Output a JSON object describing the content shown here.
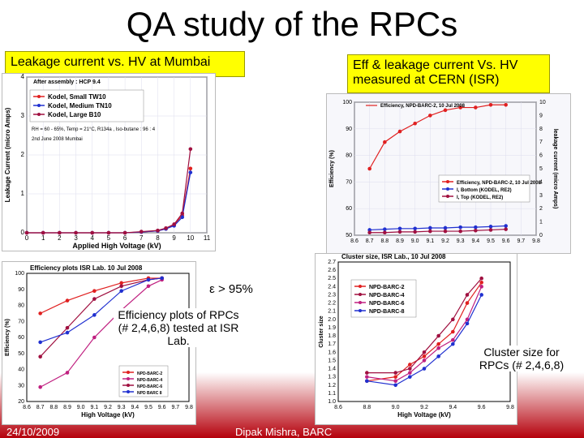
{
  "slide": {
    "title": "QA study of the RPCs",
    "box_left": "Leakage current vs. HV at Mumbai",
    "box_right": "Eff & leakage current Vs. HV measured at CERN (ISR)",
    "eff_note": "ε > 95%",
    "eff_caption": "Efficiency plots of RPCs (# 2,4,6,8) tested at ISR Lab.",
    "cluster_caption": "Cluster size for RPCs (# 2,4,6,8)",
    "footer_date": "24/10/2009",
    "footer_author": "Dipak Mishra, BARC"
  },
  "colors": {
    "red": "#e02020",
    "blue": "#2030d0",
    "darkred": "#a01040",
    "magenta": "#c02080",
    "navy": "#1020a0"
  },
  "chart_data": [
    {
      "type": "line",
      "id": "leakage_mumbai",
      "xlabel": "Applied High Voltage (kV)",
      "ylabel": "Leakage Current (micro Amps)",
      "xlim": [
        0,
        11
      ],
      "ylim": [
        0,
        4
      ],
      "xticks": [
        "0",
        "1",
        "2",
        "3",
        "4",
        "5",
        "6",
        "7",
        "8",
        "9",
        "10",
        "11"
      ],
      "yticks": [
        "0",
        "1",
        "2",
        "3",
        "4"
      ],
      "legend_header": "After assembly : HCP 9.4",
      "note1": "RH = 60 - 65%, Temp = 21°C, R134a , Iso-butane : 96 : 4",
      "note2": "2nd June 2008 Mumbai",
      "series": [
        {
          "name": "Kodel, Small TW10",
          "color": "red",
          "x": [
            0,
            1,
            2,
            3,
            4,
            5,
            6,
            7,
            8,
            8.5,
            9,
            9.5,
            10
          ],
          "y": [
            0,
            0,
            0,
            0,
            0,
            0,
            0,
            0.02,
            0.05,
            0.1,
            0.2,
            0.45,
            1.65
          ]
        },
        {
          "name": "Kodel, Medium TN10",
          "color": "blue",
          "x": [
            0,
            1,
            2,
            3,
            4,
            5,
            6,
            7,
            8,
            8.5,
            9,
            9.5,
            10
          ],
          "y": [
            0,
            0,
            0,
            0,
            0,
            0,
            0,
            0.02,
            0.05,
            0.1,
            0.18,
            0.4,
            1.55
          ]
        },
        {
          "name": "Kodel, Large B10",
          "color": "darkred",
          "x": [
            0,
            1,
            2,
            3,
            4,
            5,
            6,
            7,
            8,
            8.5,
            9,
            9.5,
            10
          ],
          "y": [
            0,
            0,
            0,
            0,
            0,
            0,
            0,
            0.03,
            0.06,
            0.12,
            0.22,
            0.5,
            2.15
          ]
        }
      ]
    },
    {
      "type": "line",
      "id": "eff_cern",
      "ylabel_left": "Efficiency (%)",
      "ylabel_right": "leakage current (micro Amps)",
      "xlim": [
        8.6,
        9.8
      ],
      "ylim": [
        50,
        100
      ],
      "y2lim": [
        0,
        10
      ],
      "xticks": [
        "8.6",
        "8.7",
        "8.8",
        "8.9",
        "9.0",
        "9.1",
        "9.2",
        "9.3",
        "9.4",
        "9.5",
        "9.6",
        "9.7",
        "9.8"
      ],
      "yticks": [
        "50",
        "60",
        "70",
        "80",
        "90",
        "100"
      ],
      "y2ticks": [
        "0",
        "1",
        "2",
        "3",
        "4",
        "5",
        "6",
        "7",
        "8",
        "9",
        "10"
      ],
      "series": [
        {
          "name": "Efficiency, NPD-BARC-2, 10 Jul 2008",
          "color": "red",
          "axis": "left",
          "x": [
            8.7,
            8.8,
            8.9,
            9.0,
            9.1,
            9.2,
            9.3,
            9.4,
            9.5,
            9.6
          ],
          "y": [
            75,
            85,
            89,
            92,
            95,
            97,
            98,
            98,
            99,
            99
          ]
        },
        {
          "name": "I, Bottom (KODEL, RE2)",
          "color": "blue",
          "axis": "right",
          "x": [
            8.7,
            8.8,
            8.9,
            9.0,
            9.1,
            9.2,
            9.3,
            9.4,
            9.5,
            9.6
          ],
          "y": [
            0.4,
            0.45,
            0.5,
            0.5,
            0.55,
            0.55,
            0.6,
            0.6,
            0.65,
            0.7
          ]
        },
        {
          "name": "I, Top (KODEL, RE2)",
          "color": "darkred",
          "axis": "right",
          "x": [
            8.7,
            8.8,
            8.9,
            9.0,
            9.1,
            9.2,
            9.3,
            9.4,
            9.5,
            9.6
          ],
          "y": [
            0.2,
            0.2,
            0.25,
            0.25,
            0.3,
            0.3,
            0.3,
            0.35,
            0.4,
            0.45
          ]
        }
      ]
    },
    {
      "type": "line",
      "id": "eff_isr",
      "title": "Efficiency plots ISR Lab. 10 Jul 2008",
      "xlabel": "High Voltage (kV)",
      "ylabel": "Efficiency (%)",
      "xlim": [
        8.6,
        9.8
      ],
      "ylim": [
        20,
        100
      ],
      "xticks": [
        "8.6",
        "8.7",
        "8.8",
        "8.9",
        "9.0",
        "9.1",
        "9.2",
        "9.3",
        "9.4",
        "9.5",
        "9.6",
        "9.7",
        "9.8"
      ],
      "yticks": [
        "20",
        "30",
        "40",
        "50",
        "60",
        "70",
        "80",
        "90",
        "100"
      ],
      "series": [
        {
          "name": "NPD-BARC-2",
          "color": "red",
          "x": [
            8.7,
            8.9,
            9.1,
            9.3,
            9.5,
            9.6
          ],
          "y": [
            75,
            83,
            89,
            94,
            97,
            97
          ]
        },
        {
          "name": "NPD-BARC-4",
          "color": "magenta",
          "x": [
            8.7,
            8.9,
            9.1,
            9.3,
            9.5,
            9.6
          ],
          "y": [
            29,
            38,
            60,
            77,
            92,
            96
          ]
        },
        {
          "name": "NPD-BARC-6",
          "color": "darkred",
          "x": [
            8.7,
            8.9,
            9.1,
            9.3,
            9.5,
            9.6
          ],
          "y": [
            48,
            66,
            84,
            92,
            96,
            97
          ]
        },
        {
          "name": "NPD BARC 8",
          "color": "blue",
          "x": [
            8.7,
            8.9,
            9.1,
            9.3,
            9.5,
            9.6
          ],
          "y": [
            57,
            63,
            74,
            89,
            96,
            97
          ]
        }
      ]
    },
    {
      "type": "line",
      "id": "cluster",
      "title": "Cluster size, ISR Lab., 10 Jul 2008",
      "xlabel": "High Voltage (kV)",
      "ylabel": "Cluster size",
      "xlim": [
        8.6,
        9.8
      ],
      "ylim": [
        1.0,
        2.7
      ],
      "xticks": [
        "8.6",
        "8.8",
        "9.0",
        "9.2",
        "9.4",
        "9.6",
        "9.8"
      ],
      "yticks": [
        "1.0",
        "1.1",
        "1.2",
        "1.3",
        "1.4",
        "1.5",
        "1.6",
        "1.7",
        "1.8",
        "1.9",
        "2.0",
        "2.1",
        "2.2",
        "2.3",
        "2.4",
        "2.5",
        "2.6",
        "2.7"
      ],
      "series": [
        {
          "name": "NPD-BARC-2",
          "color": "red",
          "x": [
            8.8,
            9.0,
            9.1,
            9.2,
            9.3,
            9.4,
            9.5,
            9.6
          ],
          "y": [
            1.25,
            1.3,
            1.45,
            1.55,
            1.7,
            1.85,
            2.2,
            2.45
          ]
        },
        {
          "name": "NPD-BARC-4",
          "color": "darkred",
          "x": [
            8.8,
            9.0,
            9.1,
            9.2,
            9.3,
            9.4,
            9.5,
            9.6
          ],
          "y": [
            1.35,
            1.35,
            1.4,
            1.6,
            1.8,
            2.0,
            2.3,
            2.5
          ]
        },
        {
          "name": "NPD-BARC-6",
          "color": "magenta",
          "x": [
            8.8,
            9.0,
            9.1,
            9.2,
            9.3,
            9.4,
            9.5,
            9.6
          ],
          "y": [
            1.3,
            1.25,
            1.35,
            1.5,
            1.65,
            1.75,
            2.0,
            2.4
          ]
        },
        {
          "name": "NPD-BARC-8",
          "color": "blue",
          "x": [
            8.8,
            9.0,
            9.1,
            9.2,
            9.3,
            9.4,
            9.5,
            9.6
          ],
          "y": [
            1.25,
            1.2,
            1.3,
            1.4,
            1.55,
            1.7,
            1.95,
            2.3
          ]
        }
      ]
    }
  ]
}
